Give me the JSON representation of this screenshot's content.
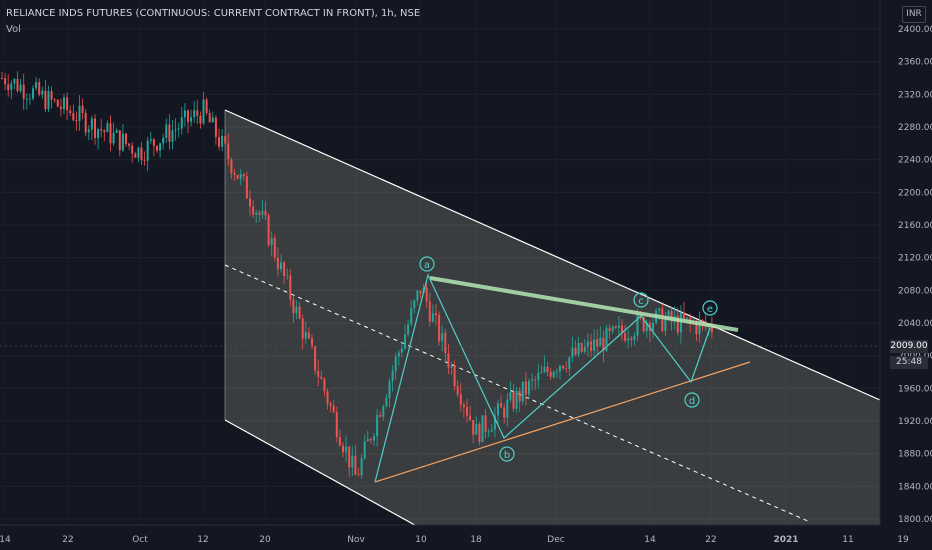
{
  "header": {
    "symbol_title": "RELIANCE INDS FUTURES (CONTINUOUS: CURRENT CONTRACT IN FRONT), 1h, NSE",
    "volume_label": "Vol",
    "currency": "INR"
  },
  "price_scale": {
    "last_price": "2009.00",
    "countdown": "25:48"
  },
  "colors": {
    "background": "#131722",
    "up_candle": "#26a69a",
    "down_candle": "#ef5350",
    "channel_fill": "#f0f0c8",
    "channel_line": "#ffffff",
    "wave_line": "#4dd0c8",
    "upper_trendline": "#b4e6b4",
    "lower_trendline": "#f4a261"
  },
  "chart_data": {
    "type": "candlestick",
    "symbol": "RELIANCE INDS FUTURES (CONTINUOUS: CURRENT CONTRACT IN FRONT)",
    "interval": "1h",
    "exchange": "NSE",
    "ylim": [
      1800,
      2400
    ],
    "y_ticks": [
      "1800.00",
      "1840.00",
      "1880.00",
      "1920.00",
      "1960.00",
      "2000.00",
      "2040.00",
      "2080.00",
      "2120.00",
      "2160.00",
      "2200.00",
      "2240.00",
      "2280.00",
      "2320.00",
      "2360.00",
      "2400.00"
    ],
    "x_ticks": [
      "14",
      "22",
      "Oct",
      "12",
      "20",
      "Nov",
      "10",
      "18",
      "Dec",
      "14",
      "22",
      "2021",
      "11",
      "19"
    ],
    "price_path": [
      [
        "14",
        2340
      ],
      [
        "22",
        2300
      ],
      [
        "Oct",
        2250
      ],
      [
        "12",
        2300
      ],
      [
        "20",
        2160
      ],
      [
        "Nov",
        1850
      ],
      [
        "10",
        2085
      ],
      [
        "18",
        1905
      ],
      [
        "Dec",
        1990
      ],
      [
        "14",
        2045
      ],
      [
        "22",
        2035
      ]
    ],
    "wave_points": [
      {
        "label": "a",
        "x_tick": "10",
        "price": 2095
      },
      {
        "label": "b",
        "x_tick": "18",
        "price": 1900
      },
      {
        "label": "c",
        "x_tick": "14",
        "price": 2045
      },
      {
        "label": "d",
        "x_tick": "22",
        "price": 1968
      },
      {
        "label": "e",
        "x_tick": "22",
        "price": 2035
      }
    ],
    "last_price": 2009.0
  }
}
